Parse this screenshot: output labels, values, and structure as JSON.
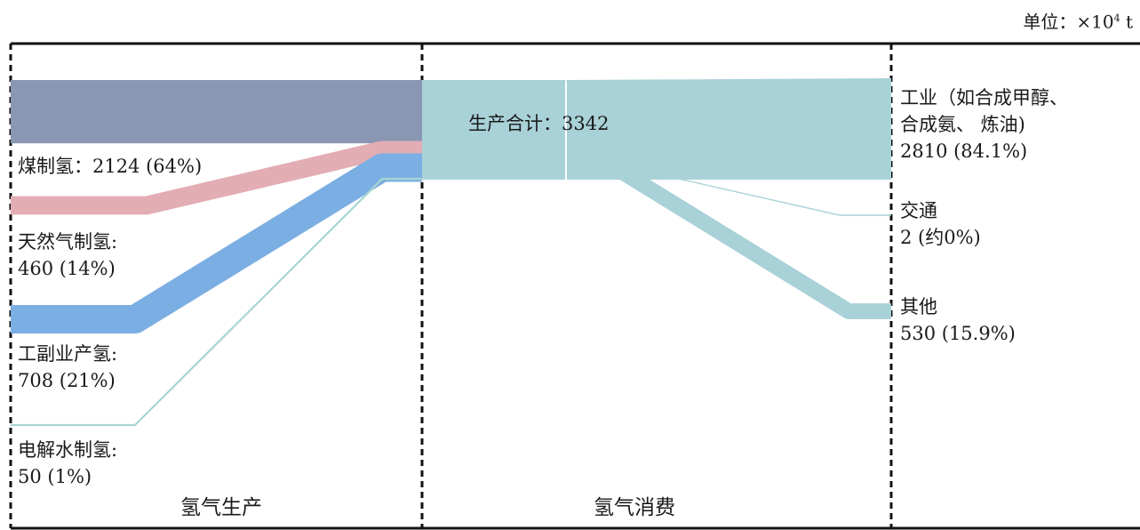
{
  "unit": {
    "prefix": "单位：×10",
    "exp": "4",
    "suffix": " t"
  },
  "sections": {
    "production": "氢气生产",
    "consumption": "氢气消费"
  },
  "total_label": "生产合计：3342",
  "sources": [
    {
      "name": "煤制氢：",
      "value_text": "2124 (64%)",
      "value": 2124,
      "percent": 64,
      "color": "#8a97b3"
    },
    {
      "name": "天然气制氢:",
      "value_text": "460 (14%)",
      "value": 460,
      "percent": 14,
      "color": "#e3adb4"
    },
    {
      "name": "工副业产氢:",
      "value_text": "708 (21%)",
      "value": 708,
      "percent": 21,
      "color": "#7baee2"
    },
    {
      "name": "电解水制氢:",
      "value_text": "50 (1%)",
      "value": 50,
      "percent": 1,
      "color": "#a9d5d2"
    }
  ],
  "total": 3342,
  "uses": [
    {
      "name_lines": [
        "工业（如合成甲醇、",
        "合成氨、 炼油)"
      ],
      "value_text": "2810 (84.1%)",
      "value": 2810,
      "percent": 84.1,
      "color": "#a9d1d8"
    },
    {
      "name_lines": [
        "交通"
      ],
      "value_text": "2 (约0%)",
      "value": 2,
      "percent": 0,
      "color": "#a9d1d8"
    },
    {
      "name_lines": [
        "其他"
      ],
      "value_text": "530 (15.9%)",
      "value": 530,
      "percent": 15.9,
      "color": "#a9d1d8"
    }
  ]
}
